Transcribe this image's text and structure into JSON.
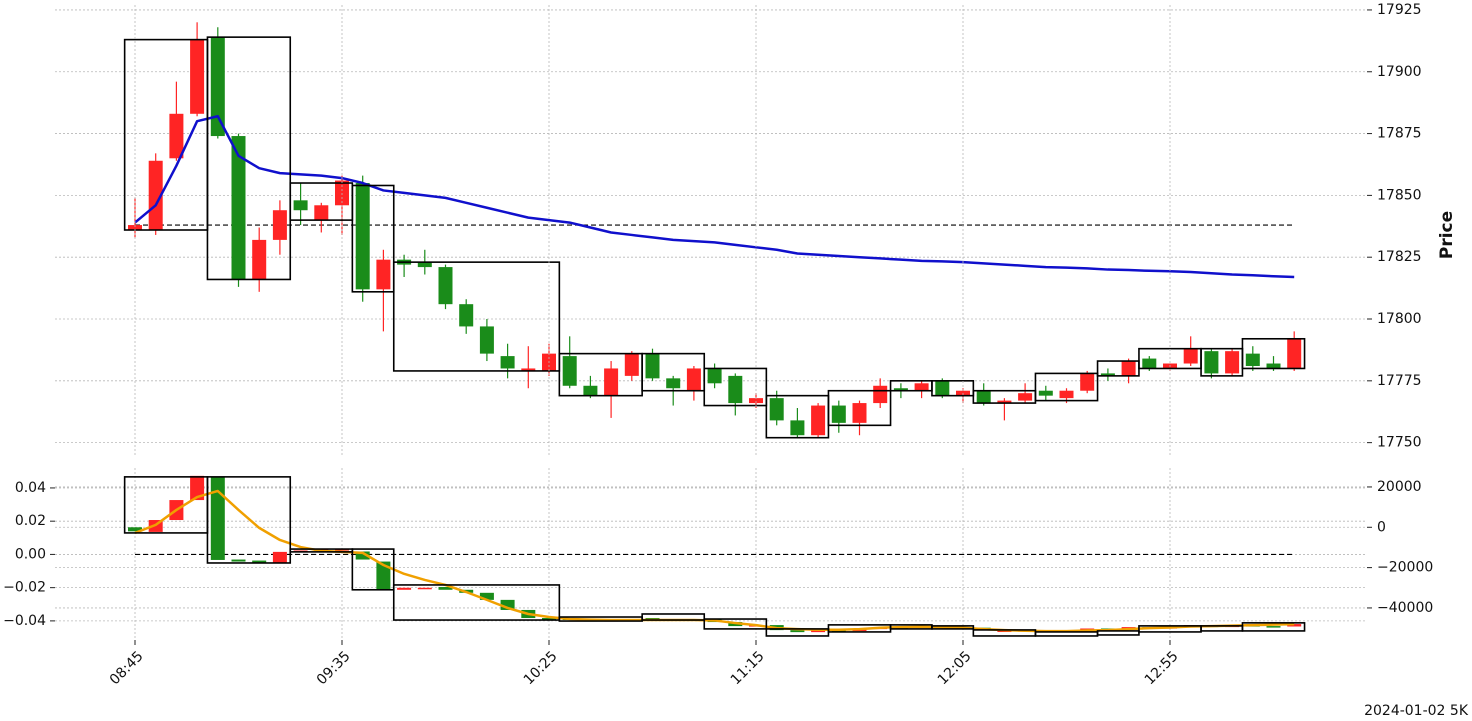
{
  "chart_data": [
    {
      "type": "candlestick",
      "ylabel": "Price",
      "y_axis_position": "right",
      "grid": true,
      "ylim": [
        17745,
        17927
      ],
      "yticks": [
        17750,
        17775,
        17800,
        17825,
        17850,
        17875,
        17900,
        17925
      ],
      "up_color": "#ff2424",
      "down_color": "#1a8c1a",
      "candles": {
        "open": [
          17836,
          17836,
          17865,
          17883,
          17914,
          17874,
          17816,
          17832,
          17848,
          17840,
          17846,
          17855,
          17812,
          17824,
          17823,
          17821,
          17806,
          17797,
          17785,
          17779,
          17779,
          17785,
          17773,
          17769,
          17777,
          17786,
          17776,
          17771,
          17780,
          17777,
          17766,
          17768,
          17759,
          17753,
          17765,
          17758,
          17766,
          17772,
          17771,
          17775,
          17769,
          17771,
          17766,
          17767,
          17771,
          17768,
          17771,
          17778,
          17777,
          17784,
          17780,
          17782,
          17787,
          17778,
          17786,
          17782,
          17780
        ],
        "high": [
          17849,
          17867,
          17896,
          17920,
          17918,
          17875,
          17837,
          17848,
          17855,
          17847,
          17858,
          17858,
          17828,
          17826,
          17828,
          17822,
          17808,
          17800,
          17790,
          17789,
          17790,
          17793,
          17777,
          17783,
          17787,
          17788,
          17777,
          17781,
          17782,
          17778,
          17770,
          17771,
          17764,
          17766,
          17767,
          17767,
          17776,
          17774,
          17775,
          17776,
          17772,
          17774,
          17768,
          17774,
          17773,
          17772,
          17779,
          17780,
          17784,
          17785,
          17782,
          17793,
          17788,
          17788,
          17789,
          17785,
          17795
        ],
        "low": [
          17833,
          17834,
          17864,
          17882,
          17873,
          17813,
          17811,
          17826,
          17838,
          17835,
          17834,
          17807,
          17795,
          17817,
          17818,
          17804,
          17794,
          17783,
          17776,
          17772,
          17777,
          17772,
          17768,
          17760,
          17775,
          17775,
          17765,
          17767,
          17772,
          17761,
          17764,
          17757,
          17752,
          17752,
          17754,
          17753,
          17764,
          17768,
          17768,
          17768,
          17766,
          17765,
          17759,
          17766,
          17767,
          17766,
          17770,
          17775,
          17774,
          17779,
          17779,
          17781,
          17776,
          17777,
          17779,
          17779,
          17779
        ],
        "close": [
          17838,
          17864,
          17883,
          17913,
          17874,
          17816,
          17832,
          17844,
          17844,
          17846,
          17856,
          17812,
          17824,
          17822,
          17821,
          17806,
          17797,
          17786,
          17780,
          17780,
          17786,
          17773,
          17769,
          17780,
          17786,
          17776,
          17772,
          17780,
          17774,
          17766,
          17768,
          17759,
          17753,
          17765,
          17758,
          17766,
          17773,
          17771,
          17774,
          17769,
          17771,
          17766,
          17767,
          17770,
          17769,
          17771,
          17778,
          17777,
          17783,
          17780,
          17782,
          17788,
          17778,
          17787,
          17781,
          17780,
          17792
        ]
      },
      "line": {
        "color": "#1010cc",
        "values": [
          17839,
          17846,
          17862,
          17880,
          17882,
          17866,
          17861,
          17859,
          17858.5,
          17858,
          17857,
          17855,
          17852,
          17851,
          17850,
          17849,
          17847,
          17845,
          17843,
          17841,
          17840,
          17839,
          17837,
          17835,
          17834,
          17833,
          17832,
          17831.5,
          17831,
          17830,
          17829,
          17828,
          17826.5,
          17826,
          17825.5,
          17825,
          17824.5,
          17824,
          17823.5,
          17823.3,
          17823,
          17822.5,
          17822,
          17821.5,
          17821,
          17820.8,
          17820.5,
          17820,
          17819.8,
          17819.5,
          17819.3,
          17819,
          17818.5,
          17818,
          17817.7,
          17817.3,
          17817
        ]
      },
      "reference_line": 17838,
      "boxes": {
        "items": [
          {
            "start": 0,
            "end": 3,
            "top": 17913,
            "bottom": 17836
          },
          {
            "start": 4,
            "end": 7,
            "top": 17914,
            "bottom": 17816
          },
          {
            "start": 8,
            "end": 10,
            "top": 17855,
            "bottom": 17840
          },
          {
            "start": 11,
            "end": 12,
            "top": 17854,
            "bottom": 17811
          },
          {
            "start": 13,
            "end": 20,
            "top": 17823,
            "bottom": 17779
          },
          {
            "start": 21,
            "end": 24,
            "top": 17786,
            "bottom": 17769
          },
          {
            "start": 25,
            "end": 27,
            "top": 17786,
            "bottom": 17771
          },
          {
            "start": 28,
            "end": 30,
            "top": 17780,
            "bottom": 17765
          },
          {
            "start": 31,
            "end": 33,
            "top": 17769,
            "bottom": 17752
          },
          {
            "start": 34,
            "end": 36,
            "top": 17771,
            "bottom": 17757
          },
          {
            "start": 37,
            "end": 38,
            "top": 17775,
            "bottom": 17771
          },
          {
            "start": 39,
            "end": 40,
            "top": 17775,
            "bottom": 17769
          },
          {
            "start": 41,
            "end": 43,
            "top": 17771,
            "bottom": 17766
          },
          {
            "start": 44,
            "end": 46,
            "top": 17778,
            "bottom": 17767
          },
          {
            "start": 47,
            "end": 48,
            "top": 17783,
            "bottom": 17777
          },
          {
            "start": 49,
            "end": 51,
            "top": 17788,
            "bottom": 17780
          },
          {
            "start": 52,
            "end": 53,
            "top": 17788,
            "bottom": 17777
          },
          {
            "start": 54,
            "end": 56,
            "top": 17792,
            "bottom": 17780
          }
        ]
      }
    },
    {
      "type": "candlestick",
      "y_axis_position": "left",
      "grid": true,
      "categories": [
        "08:45",
        null,
        null,
        null,
        null,
        null,
        null,
        null,
        null,
        null,
        "09:35",
        null,
        null,
        null,
        null,
        null,
        null,
        null,
        null,
        null,
        "10:25",
        null,
        null,
        null,
        null,
        null,
        null,
        null,
        null,
        null,
        "11:15",
        null,
        null,
        null,
        null,
        null,
        null,
        null,
        null,
        null,
        "12:05",
        null,
        null,
        null,
        null,
        null,
        null,
        null,
        null,
        null,
        "12:55",
        null,
        null,
        null,
        null,
        null,
        null
      ],
      "ylim": [
        -0.0515,
        0.052
      ],
      "yticks": [
        {
          "value": -0.04,
          "label": "−0.04"
        },
        {
          "value": -0.02,
          "label": "−0.02"
        },
        {
          "value": 0,
          "label": "0.00"
        },
        0.02,
        0.04
      ],
      "y2lim": [
        -55900,
        29400
      ],
      "y2ticks": [
        {
          "value": -40000,
          "label": "−40000"
        },
        {
          "value": -20000,
          "label": "−20000"
        },
        0,
        20000
      ],
      "up_color": "#ff2424",
      "down_color": "#1a8c1a",
      "candles": {
        "axis": "y2",
        "open": [
          0,
          -2300,
          3600,
          13500,
          25000,
          -16000,
          -16500,
          -17700,
          -12000,
          -11500,
          -11000,
          -12000,
          -17000,
          -31000,
          -30500,
          -29600,
          -31000,
          -32500,
          -36000,
          -41000,
          -45000,
          -45000,
          -46000,
          -46500,
          -46000,
          -45000,
          -45500,
          -46000,
          -45500,
          -47000,
          -49000,
          -48500,
          -51000,
          -52000,
          -51000,
          -51500,
          -50500,
          -49500,
          -49800,
          -49200,
          -50000,
          -49800,
          -51500,
          -51200,
          -51000,
          -51500,
          -51200,
          -50200,
          -50500,
          -49500,
          -50000,
          -49500,
          -48500,
          -49500,
          -48500,
          -49000,
          -49200
        ],
        "close": [
          -2000,
          3600,
          13500,
          25500,
          -16200,
          -17000,
          -17500,
          -12200,
          -11500,
          -11000,
          -10800,
          -16000,
          -31000,
          -30000,
          -30000,
          -31000,
          -32500,
          -36000,
          -41000,
          -45000,
          -46000,
          -46000,
          -46500,
          -46000,
          -45500,
          -45500,
          -46000,
          -45500,
          -47000,
          -49000,
          -48500,
          -51000,
          -52000,
          -51000,
          -51500,
          -50500,
          -49500,
          -49800,
          -49200,
          -50000,
          -49800,
          -51000,
          -51200,
          -51000,
          -51500,
          -51200,
          -50200,
          -50500,
          -49500,
          -50000,
          -49500,
          -48500,
          -49500,
          -48500,
          -49000,
          -49200,
          -48000
        ]
      },
      "line": {
        "color": "#f0a000",
        "axis": "y2",
        "values": [
          -2800,
          1200,
          8600,
          15000,
          18000,
          8600,
          -300,
          -6300,
          -9800,
          -11700,
          -12200,
          -12700,
          -18700,
          -23100,
          -26100,
          -28600,
          -32100,
          -36000,
          -40000,
          -43000,
          -44500,
          -45500,
          -45800,
          -46000,
          -46000,
          -46000,
          -46000,
          -46000,
          -46200,
          -47500,
          -48500,
          -50000,
          -50500,
          -50800,
          -50800,
          -50500,
          -49800,
          -49500,
          -49300,
          -49500,
          -49800,
          -50500,
          -51000,
          -51300,
          -51500,
          -51500,
          -51200,
          -51000,
          -50500,
          -50000,
          -49700,
          -49200,
          -49000,
          -48800,
          -48500,
          -48300,
          -48000
        ]
      },
      "reference_line": 0,
      "boxes": {
        "axis": "y2",
        "items": [
          {
            "start": 0,
            "end": 3,
            "top": 25000,
            "bottom": -2800
          },
          {
            "start": 4,
            "end": 7,
            "top": 25000,
            "bottom": -17700
          },
          {
            "start": 8,
            "end": 10,
            "top": -10800,
            "bottom": -12200
          },
          {
            "start": 11,
            "end": 12,
            "top": -10800,
            "bottom": -31000
          },
          {
            "start": 13,
            "end": 20,
            "top": -28600,
            "bottom": -46000
          },
          {
            "start": 21,
            "end": 24,
            "top": -44500,
            "bottom": -46500
          },
          {
            "start": 25,
            "end": 27,
            "top": -43000,
            "bottom": -46000
          },
          {
            "start": 28,
            "end": 30,
            "top": -45500,
            "bottom": -50400
          },
          {
            "start": 31,
            "end": 33,
            "top": -50400,
            "bottom": -53900
          },
          {
            "start": 34,
            "end": 36,
            "top": -48400,
            "bottom": -51900
          },
          {
            "start": 37,
            "end": 38,
            "top": -48400,
            "bottom": -50400
          },
          {
            "start": 39,
            "end": 40,
            "top": -48900,
            "bottom": -50400
          },
          {
            "start": 41,
            "end": 43,
            "top": -50900,
            "bottom": -53900
          },
          {
            "start": 44,
            "end": 46,
            "top": -51900,
            "bottom": -53900
          },
          {
            "start": 47,
            "end": 48,
            "top": -51400,
            "bottom": -53400
          },
          {
            "start": 49,
            "end": 51,
            "top": -48900,
            "bottom": -51900
          },
          {
            "start": 52,
            "end": 53,
            "top": -48900,
            "bottom": -51400
          },
          {
            "start": 54,
            "end": 56,
            "top": -47400,
            "bottom": -51400
          }
        ]
      }
    }
  ],
  "footer": "2024-01-02 5K"
}
